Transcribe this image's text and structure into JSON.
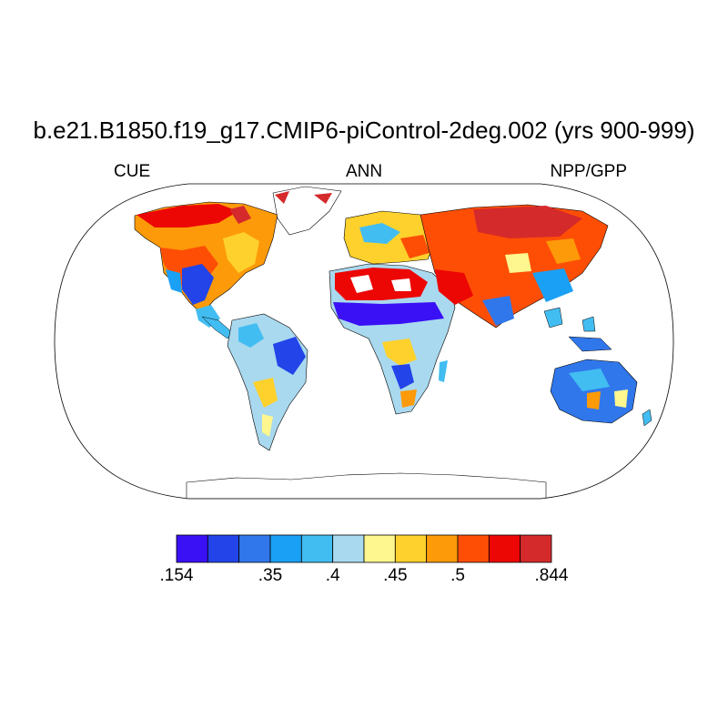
{
  "title": "b.e21.B1850.f19_g17.CMIP6-piControl-2deg.002 (yrs 900-999)",
  "left_label": "CUE",
  "center_label": "ANN",
  "right_label": "NPP/GPP",
  "projection": "Robinson",
  "colorbar": {
    "colors": [
      "#3a10f5",
      "#2244e8",
      "#3077ec",
      "#1aa0f5",
      "#42bdf2",
      "#a9d9ef",
      "#fef68e",
      "#fed12c",
      "#fd9a09",
      "#fe4e06",
      "#ec0604",
      "#d52a2b"
    ],
    "tick_labels": [
      ".154",
      ".35",
      ".4",
      ".45",
      ".5",
      ".844"
    ]
  },
  "missing_value_color": "#ffffff"
}
